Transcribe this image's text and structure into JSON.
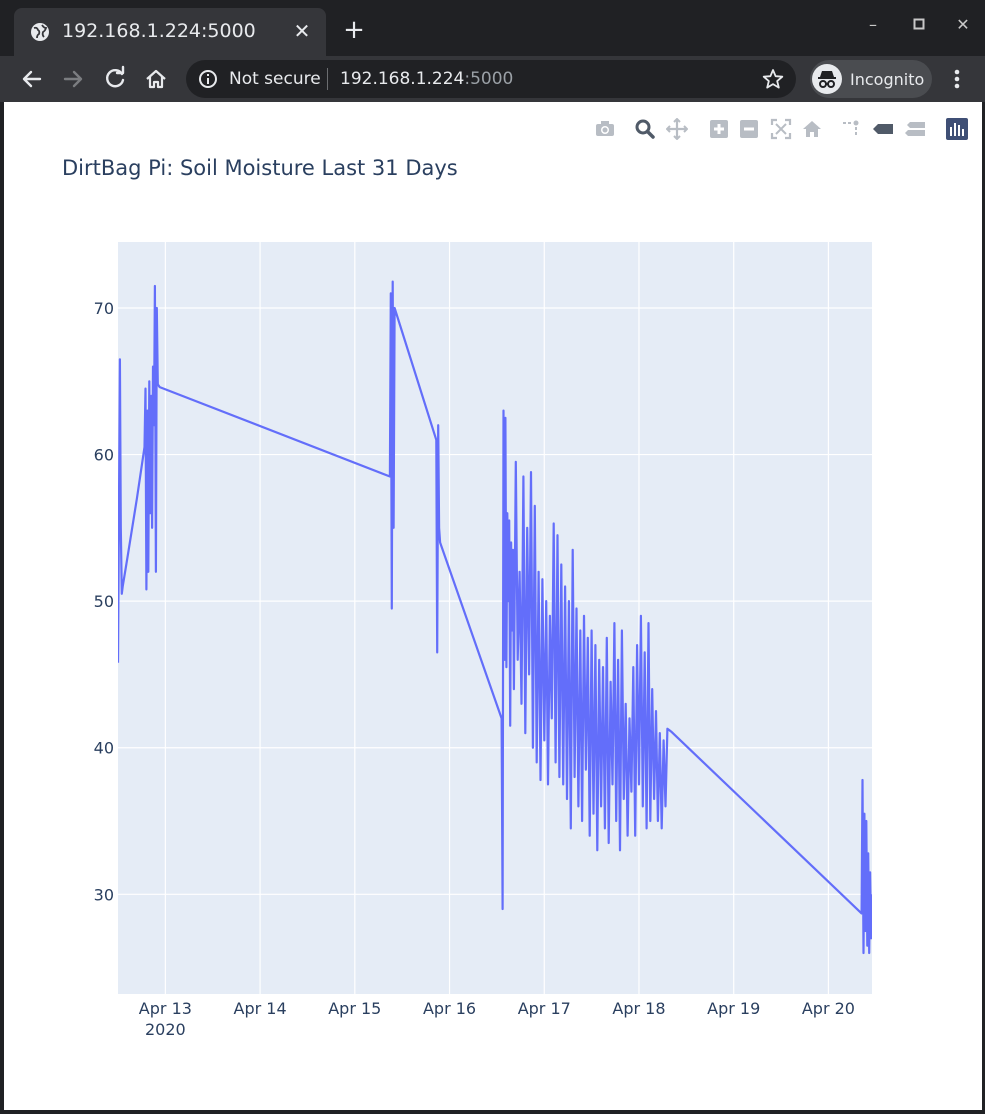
{
  "browser": {
    "tab_title": "192.168.1.224:5000",
    "omnibox": {
      "security_label": "Not secure",
      "host": "192.168.1.224",
      "port": ":5000"
    },
    "profile_label": "Incognito",
    "colors": {
      "frame": "#202124",
      "toolbar": "#35363a",
      "text": "#e8eaed"
    }
  },
  "modebar": {
    "buttons": [
      "camera-icon",
      "zoom-icon",
      "pan-icon",
      "zoom-in-icon",
      "zoom-out-icon",
      "autoscale-icon",
      "reset-axes-icon",
      "spike-lines-icon",
      "hover-closest-icon",
      "hover-compare-icon",
      "plotly-logo-icon"
    ]
  },
  "chart_data": {
    "type": "line",
    "title": "DirtBag Pi: Soil Moisture Last 31 Days",
    "xlabel": "",
    "ylabel": "",
    "x_ticks": [
      {
        "label": "Apr 13",
        "sublabel": "2020",
        "day": 13
      },
      {
        "label": "Apr 14",
        "day": 14
      },
      {
        "label": "Apr 15",
        "day": 15
      },
      {
        "label": "Apr 16",
        "day": 16
      },
      {
        "label": "Apr 17",
        "day": 17
      },
      {
        "label": "Apr 18",
        "day": 18
      },
      {
        "label": "Apr 19",
        "day": 19
      },
      {
        "label": "Apr 20",
        "day": 20
      }
    ],
    "y_ticks": [
      30,
      40,
      50,
      60,
      70
    ],
    "xlim": [
      12.5,
      20.46
    ],
    "ylim": [
      23.2,
      74.5
    ],
    "grid": true,
    "line_color": "#636efa",
    "plot_bg": "#e5ecf6",
    "x": [
      12.5,
      12.52,
      12.53,
      12.54,
      12.55,
      12.6,
      12.7,
      12.78,
      12.79,
      12.8,
      12.81,
      12.82,
      12.83,
      12.84,
      12.85,
      12.86,
      12.87,
      12.88,
      12.89,
      12.9,
      12.91,
      12.92,
      12.93,
      12.94,
      15.37,
      15.38,
      15.39,
      15.4,
      15.41,
      15.42,
      15.86,
      15.87,
      15.88,
      15.89,
      15.9,
      16.55,
      16.56,
      16.57,
      16.58,
      16.59,
      16.6,
      16.61,
      16.62,
      16.63,
      16.64,
      16.65,
      16.66,
      16.67,
      16.68,
      16.7,
      16.72,
      16.74,
      16.76,
      16.78,
      16.8,
      16.82,
      16.84,
      16.86,
      16.88,
      16.9,
      16.92,
      16.94,
      16.96,
      16.98,
      17.0,
      17.02,
      17.04,
      17.06,
      17.08,
      17.1,
      17.12,
      17.14,
      17.16,
      17.18,
      17.2,
      17.22,
      17.24,
      17.26,
      17.28,
      17.3,
      17.32,
      17.34,
      17.36,
      17.38,
      17.4,
      17.42,
      17.44,
      17.46,
      17.48,
      17.5,
      17.52,
      17.54,
      17.56,
      17.58,
      17.6,
      17.62,
      17.64,
      17.66,
      17.68,
      17.7,
      17.72,
      17.74,
      17.76,
      17.78,
      17.8,
      17.82,
      17.84,
      17.86,
      17.88,
      17.9,
      17.92,
      17.94,
      17.96,
      17.98,
      18.0,
      18.02,
      18.04,
      18.06,
      18.08,
      18.1,
      18.12,
      18.14,
      18.16,
      18.18,
      18.2,
      18.22,
      18.24,
      18.26,
      18.28,
      18.3,
      18.32,
      18.34,
      20.35,
      20.36,
      20.37,
      20.38,
      20.39,
      20.4,
      20.41,
      20.42,
      20.43,
      20.44,
      20.45,
      20.46
    ],
    "y": [
      45.8,
      66.5,
      55.0,
      50.5,
      51.0,
      53.0,
      57.0,
      60.5,
      64.5,
      50.8,
      63.0,
      52.0,
      65.0,
      56.0,
      64.0,
      55.0,
      66.0,
      62.0,
      71.5,
      52.0,
      70.0,
      64.8,
      64.7,
      64.6,
      58.5,
      71.0,
      49.5,
      71.8,
      55.0,
      70.0,
      61.0,
      46.5,
      62.0,
      55.0,
      54.0,
      42.0,
      29.0,
      63.0,
      46.0,
      62.5,
      45.5,
      56.0,
      50.0,
      55.5,
      41.5,
      54.0,
      48.0,
      53.5,
      44.0,
      59.5,
      46.0,
      52.0,
      43.0,
      58.5,
      41.0,
      55.0,
      45.0,
      58.8,
      40.0,
      56.5,
      39.0,
      52.0,
      37.8,
      51.5,
      40.5,
      50.0,
      37.5,
      49.0,
      42.0,
      55.3,
      39.0,
      54.5,
      38.0,
      52.5,
      37.5,
      51.0,
      36.5,
      50.0,
      34.5,
      53.5,
      38.0,
      49.5,
      36.0,
      48.0,
      35.0,
      49.0,
      38.5,
      47.5,
      34.0,
      48.0,
      35.5,
      47.0,
      33.0,
      46.0,
      36.0,
      45.5,
      34.5,
      47.5,
      33.5,
      44.5,
      37.5,
      48.5,
      35.0,
      46.0,
      33.0,
      48.0,
      36.5,
      43.0,
      34.0,
      42.0,
      37.0,
      45.5,
      34.0,
      47.0,
      37.5,
      49.0,
      36.0,
      46.5,
      34.5,
      48.5,
      35.0,
      44.0,
      36.5,
      42.5,
      35.0,
      41.0,
      34.5,
      40.5,
      36.0,
      41.3,
      41.2,
      41.1,
      28.7,
      37.8,
      26.0,
      35.5,
      27.5,
      35.0,
      26.5,
      32.8,
      26.0,
      31.5,
      27.0,
      30.0
    ]
  }
}
